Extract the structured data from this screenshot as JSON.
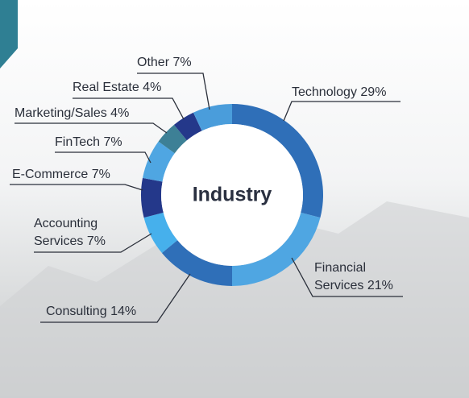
{
  "chart_data": {
    "type": "donut",
    "title": "Industry",
    "categories": [
      "Technology",
      "Financial Services",
      "Consulting",
      "Accounting Services",
      "E-Commerce",
      "FinTech",
      "Marketing/Sales",
      "Real Estate",
      "Other"
    ],
    "values": [
      29,
      21,
      14,
      7,
      7,
      7,
      4,
      4,
      7
    ],
    "value_labels": [
      "29%",
      "21%",
      "14%",
      "7%",
      "7%",
      "7%",
      "4%",
      "4%",
      "7%"
    ],
    "colors": [
      "#2f6fb8",
      "#4fa6e2",
      "#2f6fb8",
      "#46b0ec",
      "#24388a",
      "#4fa6e2",
      "#3d8096",
      "#24388a",
      "#4a9ddb"
    ]
  }
}
